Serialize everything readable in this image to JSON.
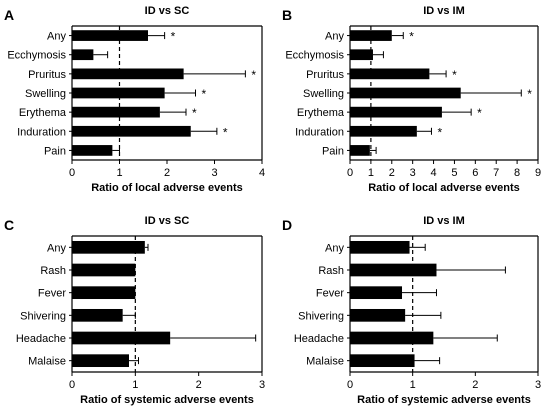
{
  "chart_data": [
    {
      "type": "bar",
      "orientation": "horizontal",
      "panel": "A",
      "title": "ID vs SC",
      "xlabel": "Ratio of local adverse events",
      "xlim": [
        0,
        4
      ],
      "xticks": [
        "0",
        "1",
        "2",
        "3",
        "4"
      ],
      "reference_line": 1,
      "categories": [
        "Any",
        "Ecchymosis",
        "Pruritus",
        "Swelling",
        "Erythema",
        "Induration",
        "Pain"
      ],
      "values": [
        1.6,
        0.45,
        2.35,
        1.95,
        1.85,
        2.5,
        0.85
      ],
      "error_upper": [
        1.95,
        0.75,
        3.65,
        2.6,
        2.4,
        3.05,
        1.0
      ],
      "significant": [
        "*",
        "",
        "*",
        "*",
        "*",
        "*",
        ""
      ]
    },
    {
      "type": "bar",
      "orientation": "horizontal",
      "panel": "B",
      "title": "ID vs IM",
      "xlabel": "Ratio of local adverse events",
      "xlim": [
        0,
        9
      ],
      "xticks": [
        "0",
        "1",
        "2",
        "3",
        "4",
        "5",
        "6",
        "7",
        "8",
        "9"
      ],
      "reference_line": 1,
      "categories": [
        "Any",
        "Ecchymosis",
        "Pruritus",
        "Swelling",
        "Erythema",
        "Induration",
        "Pain"
      ],
      "values": [
        2.0,
        1.1,
        3.8,
        5.3,
        4.4,
        3.2,
        0.95
      ],
      "error_upper": [
        2.55,
        1.6,
        4.6,
        8.2,
        5.8,
        3.9,
        1.25
      ],
      "significant": [
        "*",
        "",
        "*",
        "*",
        "*",
        "*",
        ""
      ]
    },
    {
      "type": "bar",
      "orientation": "horizontal",
      "panel": "C",
      "title": "ID vs SC",
      "xlabel": "Ratio of systemic adverse events",
      "xlim": [
        0,
        3
      ],
      "xticks": [
        "0",
        "1",
        "2",
        "3"
      ],
      "reference_line": 1,
      "categories": [
        "Any",
        "Rash",
        "Fever",
        "Shivering",
        "Headache",
        "Malaise"
      ],
      "values": [
        1.15,
        1.0,
        1.0,
        0.8,
        1.55,
        0.9
      ],
      "error_upper": [
        1.2,
        1.0,
        1.0,
        1.0,
        2.9,
        1.05
      ],
      "significant": [
        "",
        "",
        "",
        "",
        "",
        ""
      ]
    },
    {
      "type": "bar",
      "orientation": "horizontal",
      "panel": "D",
      "title": "ID vs IM",
      "xlabel": "Ratio of systemic adverse events",
      "xlim": [
        0,
        3
      ],
      "xticks": [
        "0",
        "1",
        "2",
        "3"
      ],
      "reference_line": 1,
      "categories": [
        "Any",
        "Rash",
        "Fever",
        "Shivering",
        "Headache",
        "Malaise"
      ],
      "values": [
        0.95,
        1.38,
        0.83,
        0.88,
        1.33,
        1.03
      ],
      "error_upper": [
        1.2,
        2.48,
        1.38,
        1.45,
        2.35,
        1.43
      ],
      "significant": [
        "",
        "",
        "",
        "",
        "",
        ""
      ]
    }
  ]
}
